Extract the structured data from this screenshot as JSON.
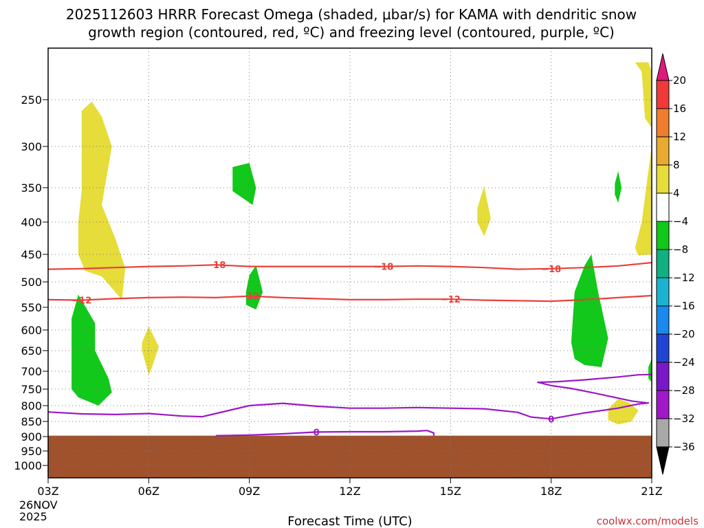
{
  "chart_data": {
    "type": "heatmap",
    "title_lines": [
      "2025112603 HRRR Forecast Omega (shaded, μbar/s) for KAMA with dendritic snow",
      "growth region (contoured, red, ºC) and freezing level (contoured, purple, ºC)"
    ],
    "xlabel": "Forecast Time (UTC)",
    "x_ticks": [
      {
        "hour": 0,
        "label": "03Z"
      },
      {
        "hour": 3,
        "label": "06Z"
      },
      {
        "hour": 6,
        "label": "09Z"
      },
      {
        "hour": 9,
        "label": "12Z"
      },
      {
        "hour": 12,
        "label": "15Z"
      },
      {
        "hour": 15,
        "label": "18Z"
      },
      {
        "hour": 18,
        "label": "21Z"
      }
    ],
    "x_date_lines": [
      "26NOV",
      "2025"
    ],
    "y_ticks_hpa": [
      250,
      300,
      350,
      400,
      450,
      500,
      550,
      600,
      650,
      700,
      750,
      800,
      850,
      900,
      950,
      1000
    ],
    "xlim_hours": [
      0,
      18
    ],
    "ylim_hpa": [
      200,
      1050
    ],
    "ground_top_hpa": 897,
    "colorbar": {
      "labels": [
        "20",
        "16",
        "12",
        "8",
        "4",
        "−4",
        "−8",
        "−12",
        "−16",
        "−20",
        "−24",
        "−28",
        "−32",
        "−36"
      ],
      "colors": [
        "#dd1a7c",
        "#f03a3a",
        "#f07d2c",
        "#e8aa30",
        "#e6dc3a",
        "#ffffff",
        "#12c81a",
        "#10b080",
        "#1ab4d2",
        "#1a8aee",
        "#2244d2",
        "#7a18c8",
        "#a018c8",
        "#a8a8a8",
        "#000000"
      ]
    },
    "dgz_contours": [
      {
        "temp_c": -18,
        "label": "−18",
        "label_hours": [
          5,
          10,
          15
        ],
        "points": [
          [
            0,
            477
          ],
          [
            1,
            476
          ],
          [
            2,
            474
          ],
          [
            3,
            472
          ],
          [
            4,
            471
          ],
          [
            5,
            469
          ],
          [
            6,
            472
          ],
          [
            7,
            472
          ],
          [
            8,
            472
          ],
          [
            9,
            472
          ],
          [
            10,
            472
          ],
          [
            11,
            471
          ],
          [
            12,
            472
          ],
          [
            13,
            474
          ],
          [
            14,
            477
          ],
          [
            15,
            476
          ],
          [
            16,
            474
          ],
          [
            17,
            471
          ],
          [
            18,
            465
          ]
        ]
      },
      {
        "temp_c": -12,
        "label": "−12",
        "label_hours": [
          1,
          6,
          12
        ],
        "points": [
          [
            0,
            535
          ],
          [
            1,
            536
          ],
          [
            2,
            533
          ],
          [
            3,
            531
          ],
          [
            4,
            530
          ],
          [
            5,
            531
          ],
          [
            6,
            528
          ],
          [
            7,
            531
          ],
          [
            8,
            533
          ],
          [
            9,
            535
          ],
          [
            10,
            535
          ],
          [
            11,
            534
          ],
          [
            12,
            534
          ],
          [
            13,
            536
          ],
          [
            14,
            537
          ],
          [
            15,
            538
          ],
          [
            16,
            535
          ],
          [
            17,
            531
          ],
          [
            18,
            527
          ]
        ]
      }
    ],
    "freezing_contours": [
      {
        "temp_c": 0,
        "label": "0",
        "label_hours": [
          15
        ],
        "points": [
          [
            0,
            820
          ],
          [
            1,
            826
          ],
          [
            2,
            828
          ],
          [
            3,
            825
          ],
          [
            4,
            833
          ],
          [
            4.6,
            835
          ],
          [
            5,
            825
          ],
          [
            6,
            800
          ],
          [
            7,
            793
          ],
          [
            8,
            802
          ],
          [
            9,
            808
          ],
          [
            10,
            808
          ],
          [
            11,
            806
          ],
          [
            12,
            808
          ],
          [
            13,
            810
          ],
          [
            14,
            821
          ],
          [
            14.4,
            836
          ],
          [
            15,
            842
          ],
          [
            15.3,
            836
          ],
          [
            16,
            823
          ],
          [
            17,
            808
          ],
          [
            17.6,
            795
          ],
          [
            17.9,
            792
          ],
          [
            17.4,
            786
          ],
          [
            16.3,
            762
          ],
          [
            15.6,
            748
          ],
          [
            15,
            740
          ],
          [
            14.6,
            731
          ],
          [
            15.2,
            729
          ],
          [
            16,
            724
          ],
          [
            17,
            716
          ],
          [
            17.6,
            710
          ],
          [
            18,
            709
          ]
        ]
      },
      {
        "temp_c": 0,
        "label": "0",
        "label_hours": [
          8
        ],
        "points": [
          [
            5,
            897
          ],
          [
            6,
            895
          ],
          [
            7,
            891
          ],
          [
            8,
            885
          ],
          [
            9,
            884
          ],
          [
            10,
            884
          ],
          [
            11,
            882
          ],
          [
            11.3,
            880
          ],
          [
            11.5,
            888
          ],
          [
            11.5,
            897
          ]
        ]
      }
    ],
    "omega_regions": [
      {
        "level": "4",
        "color": "#e6dc3a",
        "points": [
          [
            1.0,
            262
          ],
          [
            1.3,
            252
          ],
          [
            1.6,
            268
          ],
          [
            1.9,
            300
          ],
          [
            1.6,
            375
          ],
          [
            2.0,
            425
          ],
          [
            2.3,
            475
          ],
          [
            2.2,
            535
          ],
          [
            1.6,
            490
          ],
          [
            1.1,
            480
          ],
          [
            0.9,
            450
          ],
          [
            0.9,
            400
          ],
          [
            1.0,
            355
          ],
          [
            1.0,
            300
          ]
        ]
      },
      {
        "level": "4",
        "color": "#e6dc3a",
        "points": [
          [
            2.8,
            630
          ],
          [
            3.0,
            592
          ],
          [
            3.3,
            640
          ],
          [
            3.1,
            690
          ],
          [
            3.0,
            710
          ],
          [
            2.8,
            650
          ]
        ]
      },
      {
        "level": "4",
        "color": "#e6dc3a",
        "points": [
          [
            12.8,
            380
          ],
          [
            13.0,
            348
          ],
          [
            13.2,
            395
          ],
          [
            13.0,
            422
          ],
          [
            12.8,
            400
          ]
        ]
      },
      {
        "level": "4",
        "color": "#e6dc3a",
        "points": [
          [
            17.5,
            210
          ],
          [
            17.9,
            210
          ],
          [
            18.0,
            220
          ],
          [
            18.0,
            280
          ],
          [
            17.8,
            270
          ],
          [
            17.7,
            220
          ]
        ]
      },
      {
        "level": "4",
        "color": "#e6dc3a",
        "points": [
          [
            17.5,
            440
          ],
          [
            17.7,
            400
          ],
          [
            17.9,
            330
          ],
          [
            18.0,
            300
          ],
          [
            18.0,
            450
          ],
          [
            17.6,
            452
          ]
        ]
      },
      {
        "level": "4",
        "color": "#e6dc3a",
        "points": [
          [
            16.7,
            810
          ],
          [
            17.0,
            780
          ],
          [
            17.3,
            790
          ],
          [
            17.6,
            815
          ],
          [
            17.4,
            850
          ],
          [
            17.0,
            860
          ],
          [
            16.7,
            845
          ]
        ]
      },
      {
        "level": "-4",
        "color": "#12c81a",
        "points": [
          [
            0.7,
            575
          ],
          [
            0.9,
            525
          ],
          [
            1.4,
            585
          ],
          [
            1.4,
            650
          ],
          [
            1.8,
            720
          ],
          [
            1.9,
            760
          ],
          [
            1.5,
            800
          ],
          [
            0.9,
            775
          ],
          [
            0.7,
            750
          ]
        ]
      },
      {
        "level": "-4",
        "color": "#12c81a",
        "points": [
          [
            5.5,
            325
          ],
          [
            6.0,
            320
          ],
          [
            6.2,
            350
          ],
          [
            6.1,
            375
          ],
          [
            5.5,
            355
          ]
        ]
      },
      {
        "level": "-4",
        "color": "#12c81a",
        "points": [
          [
            5.9,
            520
          ],
          [
            6.0,
            488
          ],
          [
            6.2,
            470
          ],
          [
            6.4,
            520
          ],
          [
            6.2,
            555
          ],
          [
            5.9,
            545
          ]
        ]
      },
      {
        "level": "-4",
        "color": "#12c81a",
        "points": [
          [
            15.6,
            630
          ],
          [
            15.7,
            520
          ],
          [
            16.0,
            470
          ],
          [
            16.2,
            450
          ],
          [
            16.4,
            520
          ],
          [
            16.7,
            620
          ],
          [
            16.5,
            690
          ],
          [
            16.0,
            685
          ],
          [
            15.7,
            670
          ]
        ]
      },
      {
        "level": "-4",
        "color": "#12c81a",
        "points": [
          [
            16.9,
            345
          ],
          [
            17.0,
            330
          ],
          [
            17.1,
            350
          ],
          [
            17.0,
            372
          ],
          [
            16.9,
            360
          ]
        ]
      },
      {
        "level": "-4",
        "color": "#12c81a",
        "points": [
          [
            17.9,
            690
          ],
          [
            18.0,
            670
          ],
          [
            18.0,
            730
          ],
          [
            17.9,
            720
          ]
        ]
      }
    ],
    "credit": "coolwx.com/models"
  }
}
